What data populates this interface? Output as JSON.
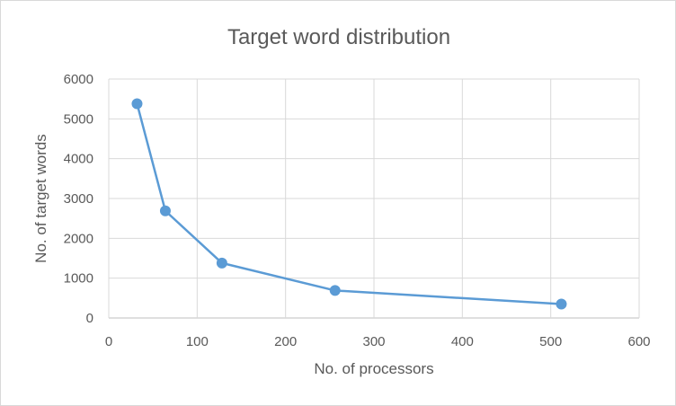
{
  "chart_data": {
    "type": "scatter",
    "title": "Target word distribution",
    "xlabel": "No. of processors",
    "ylabel": "No. of target words",
    "xlim": [
      0,
      600
    ],
    "ylim": [
      0,
      6000
    ],
    "xticks": [
      0,
      100,
      200,
      300,
      400,
      500,
      600
    ],
    "yticks": [
      0,
      1000,
      2000,
      3000,
      4000,
      5000,
      6000
    ],
    "grid": true,
    "legend": "none",
    "series_color": "#5b9bd5",
    "series": [
      {
        "x": [
          32,
          64,
          128,
          256,
          512
        ],
        "y": [
          5380,
          2690,
          1380,
          690,
          350
        ]
      }
    ]
  }
}
